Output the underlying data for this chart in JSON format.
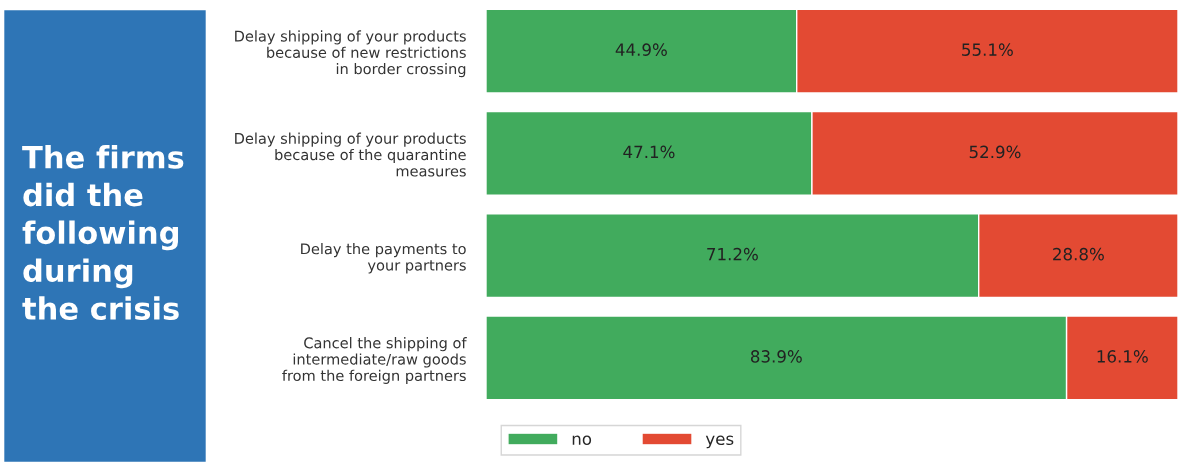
{
  "chart_data": {
    "type": "bar",
    "orientation": "horizontal",
    "stacked": true,
    "title": "The firms\ndid the\nfollowing\nduring\nthe crisis",
    "categories": [
      "Delay shipping of your products\nbecause of new restrictions\nin border crossing",
      "Delay shipping of your products\nbecause of the quarantine\nmeasures",
      "Delay the payments to\nyour partners",
      "Cancel the shipping of\nintermediate/raw goods\nfrom the foreign partners"
    ],
    "series": [
      {
        "name": "no",
        "color": "#41ab5d",
        "values": [
          44.9,
          47.1,
          71.2,
          83.9
        ],
        "value_labels": [
          "44.9%",
          "47.1%",
          "71.2%",
          "83.9%"
        ]
      },
      {
        "name": "yes",
        "color": "#e34a33",
        "values": [
          55.1,
          52.9,
          28.8,
          16.1
        ],
        "value_labels": [
          "55.1%",
          "52.9%",
          "28.8%",
          "16.1%"
        ]
      }
    ],
    "legend": "bottom"
  }
}
